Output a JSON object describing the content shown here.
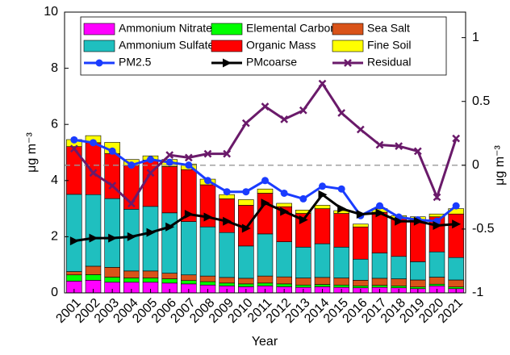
{
  "chart_data": {
    "type": "stacked_bar_line",
    "xlabel": "Year",
    "ylabel": "μg m⁻³",
    "y2label": "μg m⁻³",
    "categories": [
      "2001",
      "2002",
      "2003",
      "2004",
      "2005",
      "2006",
      "2007",
      "2008",
      "2009",
      "2010",
      "2011",
      "2012",
      "2013",
      "2014",
      "2015",
      "2016",
      "2017",
      "2018",
      "2019",
      "2020",
      "2021"
    ],
    "ylim": [
      0,
      10
    ],
    "yticks": [
      0,
      2,
      4,
      6,
      8,
      10
    ],
    "y2lim": [
      -1,
      1.2
    ],
    "y2ticks": [
      -1,
      -0.5,
      0,
      0.5,
      1
    ],
    "y2_reference": 0,
    "series": [
      {
        "name": "Ammonium Nitrate",
        "type": "bar",
        "color": "#ff00ff",
        "values": [
          0.42,
          0.45,
          0.38,
          0.38,
          0.38,
          0.35,
          0.32,
          0.28,
          0.25,
          0.22,
          0.25,
          0.22,
          0.2,
          0.22,
          0.2,
          0.18,
          0.2,
          0.18,
          0.15,
          0.25,
          0.15
        ]
      },
      {
        "name": "Elemental Carbon",
        "type": "bar",
        "color": "#00ff00",
        "values": [
          0.22,
          0.2,
          0.18,
          0.15,
          0.15,
          0.15,
          0.12,
          0.12,
          0.1,
          0.1,
          0.1,
          0.1,
          0.08,
          0.08,
          0.08,
          0.07,
          0.07,
          0.07,
          0.06,
          0.06,
          0.06
        ]
      },
      {
        "name": "Sea Salt",
        "type": "bar",
        "color": "#d95319",
        "values": [
          0.12,
          0.3,
          0.35,
          0.25,
          0.25,
          0.2,
          0.2,
          0.2,
          0.2,
          0.2,
          0.25,
          0.25,
          0.25,
          0.25,
          0.25,
          0.2,
          0.25,
          0.25,
          0.25,
          0.25,
          0.25
        ]
      },
      {
        "name": "Ammonium Sulfate",
        "type": "bar",
        "color": "#1fbfbf",
        "values": [
          2.75,
          2.55,
          2.45,
          2.2,
          2.3,
          2.15,
          1.9,
          1.75,
          1.6,
          1.15,
          1.5,
          1.25,
          1.1,
          1.2,
          1.1,
          0.75,
          0.9,
          0.8,
          0.65,
          0.9,
          0.8
        ]
      },
      {
        "name": "Organic Mass",
        "type": "bar",
        "color": "#ff0000",
        "values": [
          1.7,
          1.85,
          1.6,
          1.55,
          1.65,
          1.65,
          1.85,
          1.5,
          1.2,
          1.45,
          1.45,
          1.25,
          1.2,
          1.25,
          1.2,
          1.15,
          1.45,
          1.35,
          1.5,
          1.25,
          1.55
        ]
      },
      {
        "name": "Fine Soil",
        "type": "bar",
        "color": "#ffff00",
        "values": [
          0.25,
          0.25,
          0.4,
          0.22,
          0.15,
          0.25,
          0.2,
          0.2,
          0.15,
          0.2,
          0.15,
          0.12,
          0.12,
          0.12,
          0.1,
          0.1,
          0.13,
          0.1,
          0.1,
          0.1,
          0.19
        ]
      },
      {
        "name": "PM2.5",
        "type": "line",
        "marker": "circle",
        "color": "#1a3cff",
        "values": [
          5.45,
          5.35,
          5.05,
          4.55,
          4.75,
          4.65,
          4.55,
          4.0,
          3.6,
          3.6,
          4.0,
          3.55,
          3.35,
          3.8,
          3.7,
          2.75,
          3.1,
          2.7,
          2.6,
          2.55,
          3.1
        ]
      },
      {
        "name": "PMcoarse",
        "type": "line",
        "marker": "triangle",
        "color": "#000000",
        "values": [
          1.85,
          1.95,
          1.95,
          2.0,
          2.15,
          2.35,
          2.8,
          2.7,
          2.55,
          2.3,
          3.2,
          2.9,
          2.6,
          3.5,
          3.0,
          2.8,
          2.85,
          2.55,
          2.55,
          2.4,
          2.45
        ]
      },
      {
        "name": "Residual",
        "type": "line",
        "marker": "x",
        "axis": "y2",
        "color": "#6a1a6a",
        "values": [
          0.13,
          -0.06,
          -0.16,
          -0.3,
          -0.06,
          0.08,
          0.06,
          0.09,
          0.09,
          0.33,
          0.46,
          0.36,
          0.43,
          0.64,
          0.41,
          0.28,
          0.16,
          0.15,
          0.11,
          -0.25,
          0.21
        ]
      }
    ]
  }
}
